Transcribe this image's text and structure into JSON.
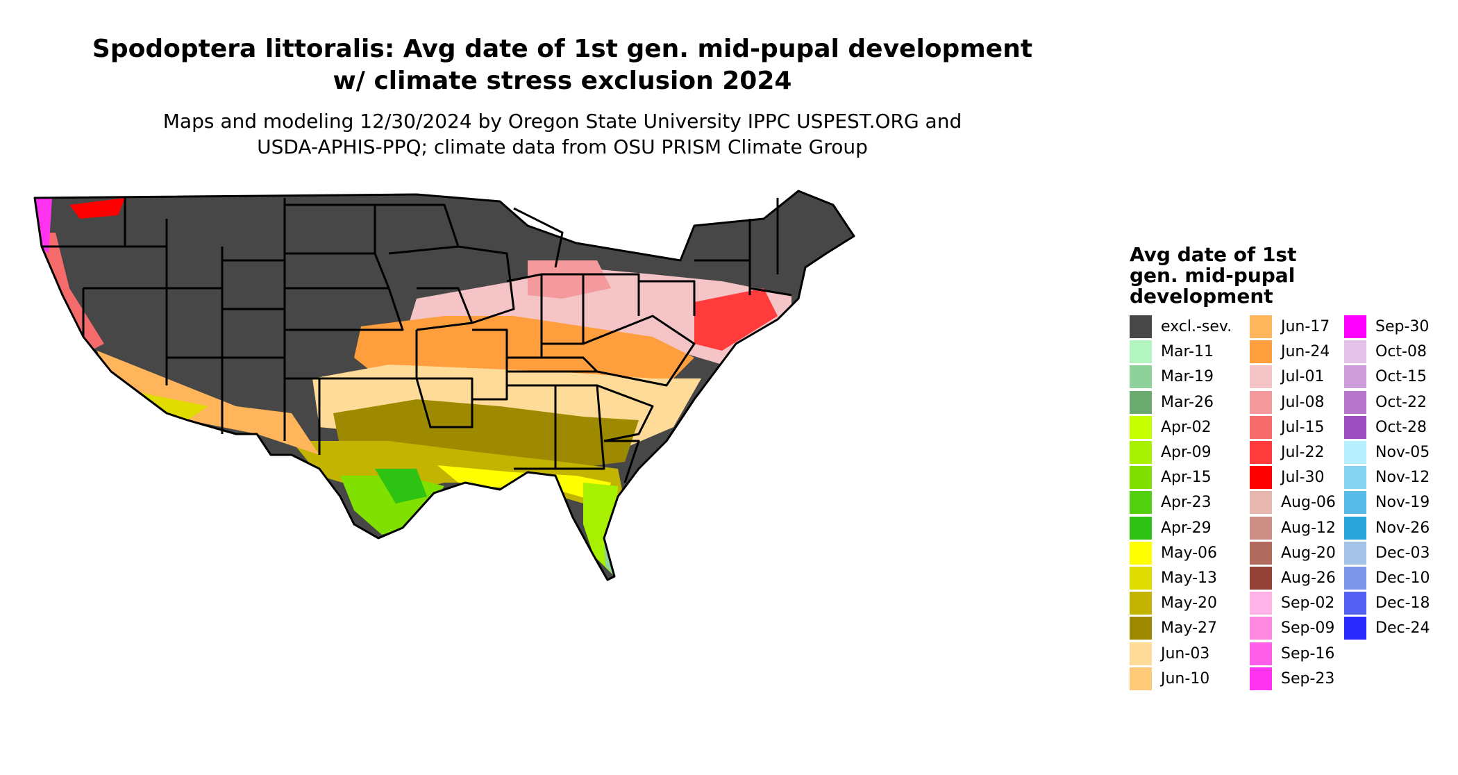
{
  "title_line1": "Spodoptera littoralis: Avg date of 1st gen. mid-pupal development",
  "title_line2": "w/ climate stress exclusion 2024",
  "subtitle_line1": "Maps and modeling 12/30/2024 by Oregon State University IPPC USPEST.ORG and",
  "subtitle_line2": "USDA-APHIS-PPQ; climate data from OSU PRISM Climate Group",
  "legend": {
    "title_line1": "Avg date of 1st",
    "title_line2": "gen. mid-pupal",
    "title_line3": "development",
    "items": [
      {
        "label": "excl.-sev.",
        "color": "#474747"
      },
      {
        "label": "Mar-11",
        "color": "#b3f5c0"
      },
      {
        "label": "Mar-19",
        "color": "#8fd19a"
      },
      {
        "label": "Mar-26",
        "color": "#6aaa6e"
      },
      {
        "label": "Apr-02",
        "color": "#c6ff00"
      },
      {
        "label": "Apr-09",
        "color": "#a6f000"
      },
      {
        "label": "Apr-15",
        "color": "#80e000"
      },
      {
        "label": "Apr-23",
        "color": "#52d10f"
      },
      {
        "label": "Apr-29",
        "color": "#2ec214"
      },
      {
        "label": "May-06",
        "color": "#ffff00"
      },
      {
        "label": "May-13",
        "color": "#e0dc00"
      },
      {
        "label": "May-20",
        "color": "#c2b400"
      },
      {
        "label": "May-27",
        "color": "#9e8a00"
      },
      {
        "label": "Jun-03",
        "color": "#ffdb99"
      },
      {
        "label": "Jun-10",
        "color": "#ffc97a"
      },
      {
        "label": "Jun-17",
        "color": "#ffb55c"
      },
      {
        "label": "Jun-24",
        "color": "#ff9e3d"
      },
      {
        "label": "Jul-01",
        "color": "#f5c4c6"
      },
      {
        "label": "Jul-08",
        "color": "#f59a9c"
      },
      {
        "label": "Jul-15",
        "color": "#f56a6a"
      },
      {
        "label": "Jul-22",
        "color": "#ff3b3b"
      },
      {
        "label": "Jul-30",
        "color": "#ff0000"
      },
      {
        "label": "Aug-06",
        "color": "#e8b7b0"
      },
      {
        "label": "Aug-12",
        "color": "#cc8e85"
      },
      {
        "label": "Aug-20",
        "color": "#b06a5e"
      },
      {
        "label": "Aug-26",
        "color": "#944235"
      },
      {
        "label": "Sep-02",
        "color": "#ffb3e6"
      },
      {
        "label": "Sep-09",
        "color": "#ff8ae0"
      },
      {
        "label": "Sep-16",
        "color": "#ff5ee8"
      },
      {
        "label": "Sep-23",
        "color": "#ff33f0"
      },
      {
        "label": "Sep-30",
        "color": "#ff00ff"
      },
      {
        "label": "Oct-08",
        "color": "#e3c3e8"
      },
      {
        "label": "Oct-15",
        "color": "#cc9dd9"
      },
      {
        "label": "Oct-22",
        "color": "#b576cc"
      },
      {
        "label": "Oct-28",
        "color": "#9c4dbf"
      },
      {
        "label": "Nov-05",
        "color": "#b8efff"
      },
      {
        "label": "Nov-12",
        "color": "#87d4f2"
      },
      {
        "label": "Nov-19",
        "color": "#58bae6"
      },
      {
        "label": "Nov-26",
        "color": "#2aa3d9"
      },
      {
        "label": "Dec-03",
        "color": "#a3c2e6"
      },
      {
        "label": "Dec-10",
        "color": "#7f97eb"
      },
      {
        "label": "Dec-18",
        "color": "#5461f2"
      },
      {
        "label": "Dec-24",
        "color": "#2a2bff"
      }
    ]
  }
}
